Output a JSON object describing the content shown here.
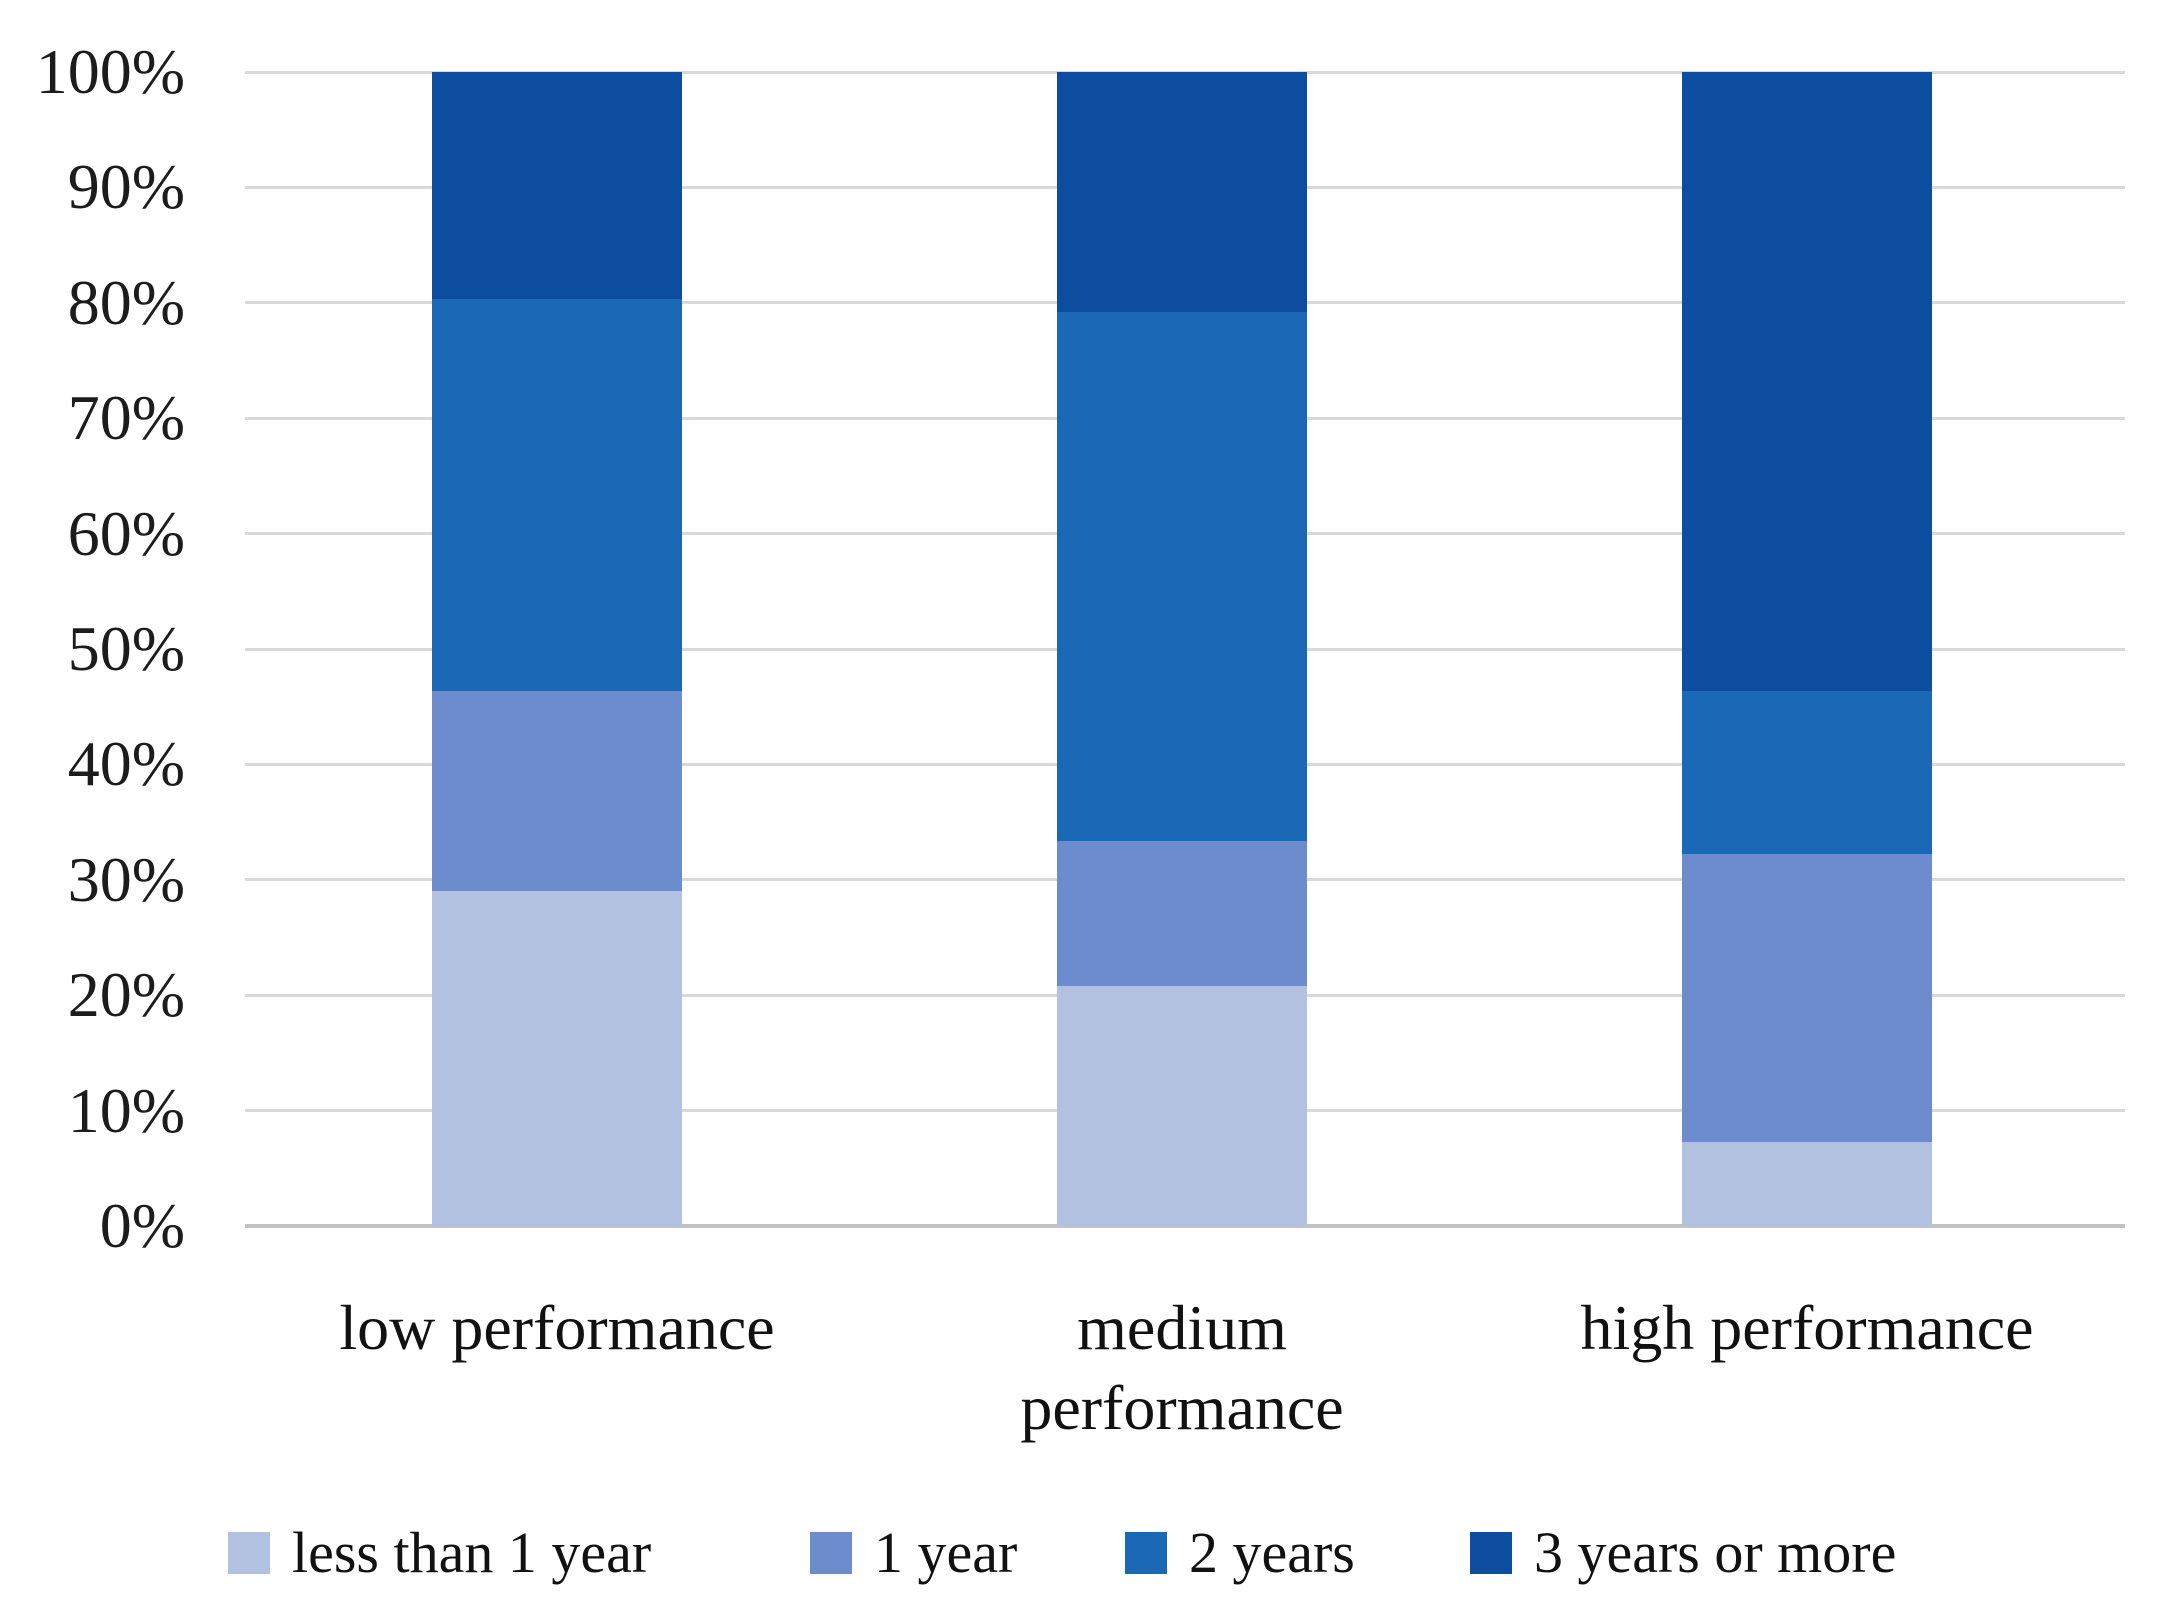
{
  "chart_data": {
    "type": "bar",
    "stacked": true,
    "stack_unit": "percent",
    "categories": [
      "low performance",
      "medium performance",
      "high performance"
    ],
    "category_label_lines": [
      [
        "low performance"
      ],
      [
        "medium",
        "performance"
      ],
      [
        "high performance"
      ]
    ],
    "series": [
      {
        "name": "less than 1 year",
        "color": "#b3c1e1",
        "values": [
          29.0,
          20.8,
          7.3
        ]
      },
      {
        "name": "1 year",
        "color": "#6d8ccd",
        "values": [
          17.4,
          12.6,
          24.9
        ]
      },
      {
        "name": "2 years",
        "color": "#1b68b7",
        "values": [
          33.9,
          45.8,
          14.2
        ]
      },
      {
        "name": "3 years or more",
        "color": "#0c4da0",
        "values": [
          19.7,
          20.8,
          53.6
        ]
      }
    ],
    "y_axis": {
      "range": [
        0,
        100
      ],
      "tick_labels": [
        "0%",
        "10%",
        "20%",
        "30%",
        "40%",
        "50%",
        "60%",
        "70%",
        "80%",
        "90%",
        "100%"
      ],
      "grid": true
    },
    "legend": {
      "position": "bottom",
      "entries": [
        "less than 1 year",
        "1 year",
        "2 years",
        "3 years or more"
      ]
    }
  },
  "colors": {
    "gridline": "#d9d9d9",
    "axis_line": "#c2c2c2",
    "text": "#1c1c1c",
    "background": "#ffffff"
  }
}
